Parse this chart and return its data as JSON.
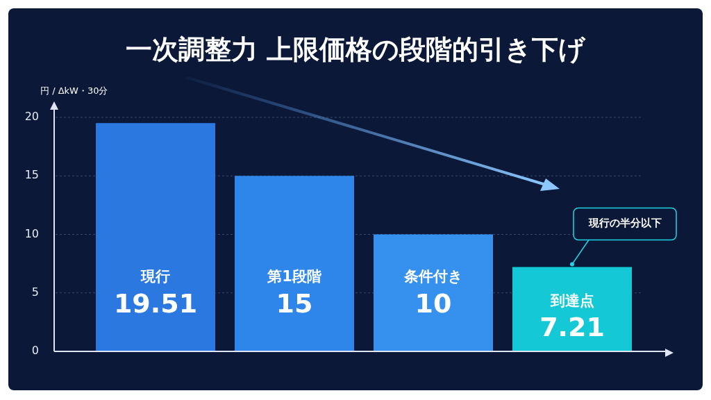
{
  "chart_data": {
    "type": "bar",
    "title": "一次調整力 上限価格の段階的引き下げ",
    "ylabel": "円 / ΔkW・30分",
    "categories": [
      "現行",
      "第1段階",
      "条件付き",
      "到達点"
    ],
    "values": [
      19.51,
      15,
      10,
      7.21
    ],
    "colors": [
      "#2a78e0",
      "#2f86ea",
      "#3590ee",
      "#14c8d6"
    ],
    "ylim": [
      0,
      20
    ],
    "yticks": [
      0,
      5,
      10,
      15,
      20
    ],
    "grid": "y",
    "data_labels": true,
    "annotations": [
      {
        "text": "現行の半分以下",
        "x": "到達点",
        "y": 7.21
      }
    ]
  }
}
